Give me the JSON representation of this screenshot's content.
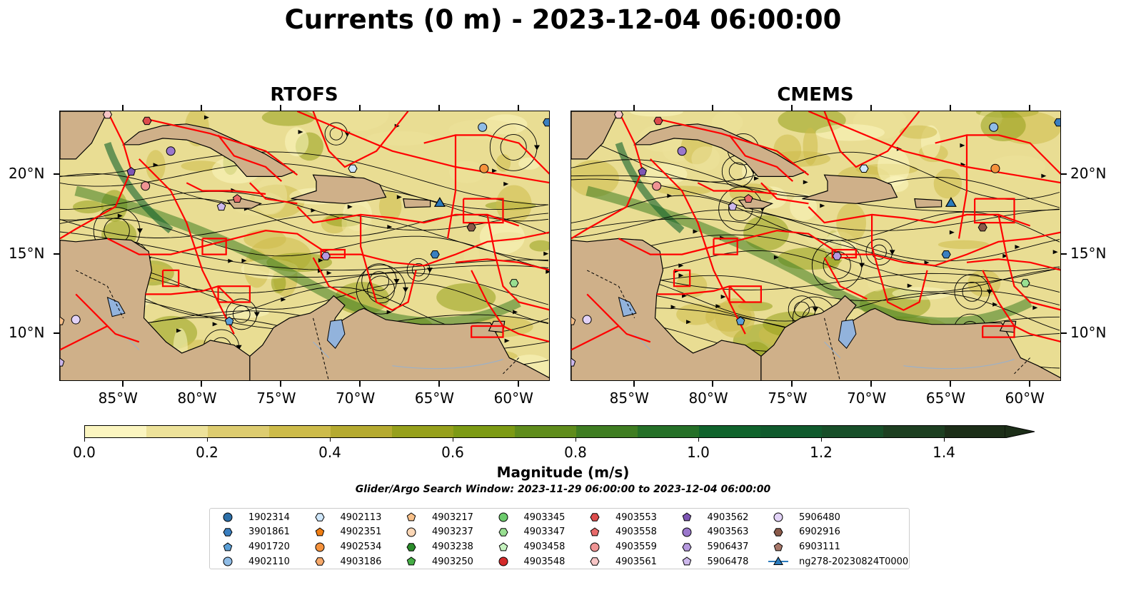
{
  "title": "Currents (0 m) - 2023-12-04 06:00:00",
  "panels": [
    {
      "id": "rtofs",
      "title": "RTOFS"
    },
    {
      "id": "cmems",
      "title": "CMEMS"
    }
  ],
  "map": {
    "lon_range": [
      -89.0,
      -58.0
    ],
    "lat_range": [
      7.0,
      24.0
    ],
    "lon_ticks": [
      "85°W",
      "80°W",
      "75°W",
      "70°W",
      "65°W",
      "60°W"
    ],
    "lat_ticks": [
      "20°N",
      "15°N",
      "10°N"
    ],
    "colors": {
      "land": "#cfb089",
      "lake": "#92b3dc",
      "boundary": "#ff0000",
      "stream": "#000000"
    }
  },
  "colorbar": {
    "label": "Magnitude (m/s)",
    "ticks": [
      "0.0",
      "0.2",
      "0.4",
      "0.6",
      "0.8",
      "1.0",
      "1.2",
      "1.4"
    ],
    "min": 0.0,
    "max": 1.5,
    "extend": "max",
    "colors": [
      "#fbf5c0",
      "#ede29a",
      "#ddcc70",
      "#cdbb4a",
      "#b5aa30",
      "#96a01c",
      "#7c9a14",
      "#5f8c1c",
      "#3f7d22",
      "#257028",
      "#10632c",
      "#105a2d",
      "#174f29",
      "#1d3f21",
      "#1c2e18"
    ]
  },
  "search_window": "Glider/Argo Search Window: 2023-11-29 06:00:00 to 2023-12-04 06:00:00",
  "legend": [
    {
      "label": "1902314",
      "color": "#2c6fa8",
      "marker": "circle"
    },
    {
      "label": "3901861",
      "color": "#3a7fc0",
      "marker": "hexagon"
    },
    {
      "label": "4901720",
      "color": "#5b9fd6",
      "marker": "pentagon"
    },
    {
      "label": "4902110",
      "color": "#8fbce6",
      "marker": "circle"
    },
    {
      "label": "4902113",
      "color": "#cfe7fb",
      "marker": "hexagon"
    },
    {
      "label": "4902351",
      "color": "#f07d12",
      "marker": "pentagon"
    },
    {
      "label": "4902534",
      "color": "#f5923c",
      "marker": "circle"
    },
    {
      "label": "4903186",
      "color": "#f7a96a",
      "marker": "hexagon"
    },
    {
      "label": "4903217",
      "color": "#f8c089",
      "marker": "pentagon"
    },
    {
      "label": "4903237",
      "color": "#fcd7b6",
      "marker": "circle"
    },
    {
      "label": "4903238",
      "color": "#2a8c2a",
      "marker": "hexagon"
    },
    {
      "label": "4903250",
      "color": "#45ad45",
      "marker": "pentagon"
    },
    {
      "label": "4903345",
      "color": "#6ccb6c",
      "marker": "circle"
    },
    {
      "label": "4903347",
      "color": "#98df91",
      "marker": "hexagon"
    },
    {
      "label": "4903458",
      "color": "#c6f3bf",
      "marker": "pentagon"
    },
    {
      "label": "4903548",
      "color": "#d42a2a",
      "marker": "circle"
    },
    {
      "label": "4903553",
      "color": "#dd4c4c",
      "marker": "hexagon"
    },
    {
      "label": "4903558",
      "color": "#e86a6a",
      "marker": "pentagon"
    },
    {
      "label": "4903559",
      "color": "#ef9494",
      "marker": "circle"
    },
    {
      "label": "4903561",
      "color": "#f7c5c5",
      "marker": "hexagon"
    },
    {
      "label": "4903562",
      "color": "#7e56b4",
      "marker": "pentagon"
    },
    {
      "label": "4903563",
      "color": "#9a77cc",
      "marker": "circle"
    },
    {
      "label": "5906437",
      "color": "#b699df",
      "marker": "hexagon"
    },
    {
      "label": "5906478",
      "color": "#cdb8ec",
      "marker": "pentagon"
    },
    {
      "label": "5906480",
      "color": "#e2d3f7",
      "marker": "circle"
    },
    {
      "label": "6902916",
      "color": "#8a5a4a",
      "marker": "hexagon"
    },
    {
      "label": "6903111",
      "color": "#a8786a",
      "marker": "pentagon"
    },
    {
      "label": "ng278-20230824T0000",
      "color": "#2b7bbd",
      "marker": "triangle-line"
    }
  ],
  "floats": [
    {
      "label": "4903561",
      "lon": -86.0,
      "lat": 23.8
    },
    {
      "label": "4903553",
      "lon": -83.5,
      "lat": 23.4
    },
    {
      "label": "4902110",
      "lon": -62.3,
      "lat": 23.0
    },
    {
      "label": "3901861",
      "lon": -58.2,
      "lat": 23.3
    },
    {
      "label": "4903563",
      "lon": -82.0,
      "lat": 21.5
    },
    {
      "label": "4903562",
      "lon": -84.5,
      "lat": 20.2
    },
    {
      "label": "4903559",
      "lon": -83.6,
      "lat": 19.3
    },
    {
      "label": "4903558",
      "lon": -77.8,
      "lat": 18.5
    },
    {
      "label": "5906478",
      "lon": -78.8,
      "lat": 18.0
    },
    {
      "label": "4902113",
      "lon": -70.5,
      "lat": 20.4
    },
    {
      "label": "4902534",
      "lon": -62.2,
      "lat": 20.4
    },
    {
      "label": "6902916",
      "lon": -63.0,
      "lat": 16.7
    },
    {
      "label": "3901861",
      "lon": -65.3,
      "lat": 15.0
    },
    {
      "label": "5906437",
      "lon": -72.2,
      "lat": 14.9
    },
    {
      "label": "4903347",
      "lon": -60.3,
      "lat": 13.2
    },
    {
      "label": "4901720",
      "lon": -78.3,
      "lat": 10.8
    },
    {
      "label": "4903217",
      "lon": -89.0,
      "lat": 10.8
    },
    {
      "label": "5906480",
      "lon": -88.0,
      "lat": 10.9
    },
    {
      "label": "5906478",
      "lon": -89.0,
      "lat": 8.2
    }
  ],
  "glider": {
    "label": "ng278-20230824T0000",
    "lon": -65.0,
    "lat": 18.2
  }
}
